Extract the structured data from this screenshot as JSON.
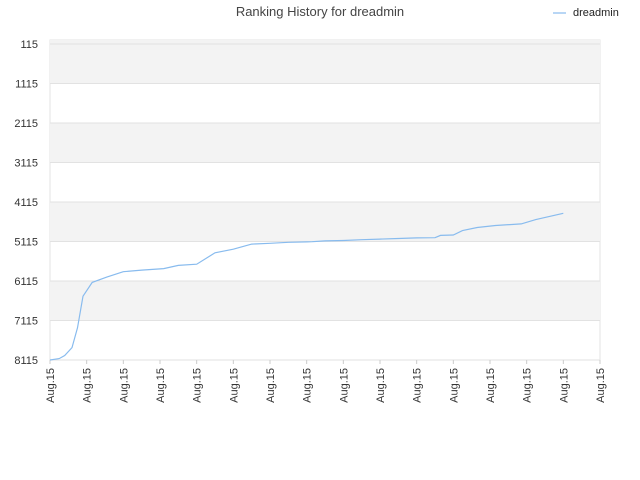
{
  "chart_data": {
    "type": "line",
    "title": "Ranking History for dreadmin",
    "xlabel": "",
    "ylabel": "",
    "y_axis_inverted": true,
    "ylim": [
      115,
      8115
    ],
    "y_ticks": [
      115,
      1115,
      2115,
      3115,
      4115,
      5115,
      6115,
      7115,
      8115
    ],
    "x_tick_labels": [
      "Aug.15",
      "Aug.15",
      "Aug.15",
      "Aug.15",
      "Aug.15",
      "Aug.15",
      "Aug.15",
      "Aug.15",
      "Aug.15",
      "Aug.15",
      "Aug.15",
      "Aug.15",
      "Aug.15",
      "Aug.15",
      "Aug.15",
      "Aug.15"
    ],
    "grid": "horizontal alternating bands",
    "legend_position": "top-right",
    "series": [
      {
        "name": "dreadmin",
        "color": "#88bbee",
        "x": [
          0,
          0.5,
          0.8,
          1.2,
          1.5,
          1.8,
          2.3,
          3.1,
          4.0,
          5.0,
          6.2,
          7.0,
          8.0,
          9.0,
          10.0,
          11.0,
          12.0,
          13.0,
          14.0,
          14.3,
          15.0,
          16.0,
          17.0,
          18.0,
          19.0,
          20.0,
          21.0,
          21.3,
          22.0,
          22.5,
          23.3,
          24.3,
          25.7,
          26.5,
          28.0
        ],
        "y": [
          8115,
          8080,
          8000,
          7800,
          7300,
          6500,
          6150,
          6015,
          5880,
          5840,
          5800,
          5720,
          5690,
          5400,
          5310,
          5180,
          5160,
          5135,
          5125,
          5120,
          5100,
          5090,
          5070,
          5055,
          5040,
          5025,
          5020,
          4960,
          4950,
          4840,
          4760,
          4710,
          4670,
          4560,
          4400
        ]
      }
    ]
  }
}
